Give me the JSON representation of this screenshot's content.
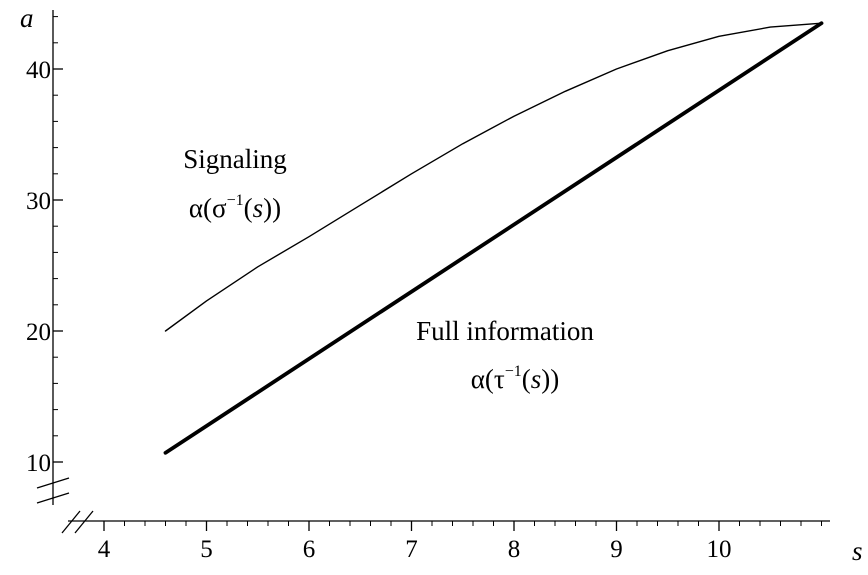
{
  "chart_data": {
    "type": "line",
    "xlabel": "s",
    "ylabel": "a",
    "xlim": [
      3.6,
      11.1
    ],
    "ylim": [
      6,
      44
    ],
    "x_ticks": [
      4,
      5,
      6,
      7,
      8,
      9,
      10
    ],
    "y_ticks": [
      10,
      20,
      30,
      40
    ],
    "axis_breaks": [
      "x",
      "y"
    ],
    "series": [
      {
        "key": "signaling",
        "x": [
          4.6,
          5.0,
          5.5,
          6.0,
          6.5,
          7.0,
          7.5,
          8.0,
          8.5,
          9.0,
          9.5,
          10.0,
          10.5,
          11.0
        ],
        "y": [
          20.0,
          22.3,
          24.9,
          27.2,
          29.6,
          32.0,
          34.3,
          36.4,
          38.3,
          40.0,
          41.4,
          42.5,
          43.2,
          43.5
        ]
      },
      {
        "key": "full_information",
        "x": [
          4.6,
          11.0
        ],
        "y": [
          10.7,
          43.5
        ]
      }
    ],
    "annotations": [
      {
        "key": "signaling",
        "line1": "Signaling",
        "line2_pre": "α(σ",
        "line2_sup": "−1",
        "line2_open": "(",
        "line2_var": "s",
        "line2_close": "))"
      },
      {
        "key": "full_information",
        "line1": "Full information",
        "line2_pre": "α(τ",
        "line2_sup": "−1",
        "line2_open": "(",
        "line2_var": "s",
        "line2_close": "))"
      }
    ]
  }
}
